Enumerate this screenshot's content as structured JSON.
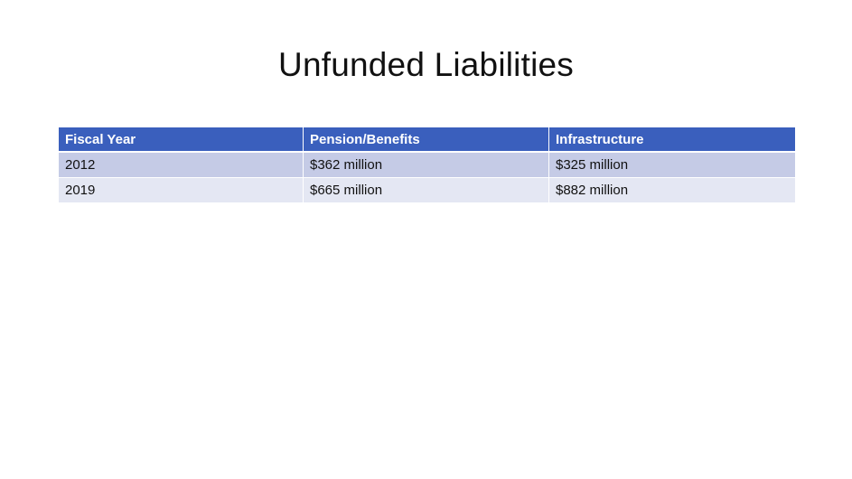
{
  "slide": {
    "title": "Unfunded Liabilities"
  },
  "table": {
    "headers": [
      "Fiscal Year",
      "Pension/Benefits",
      "Infrastructure"
    ],
    "rows": [
      [
        "2012",
        "$362 million",
        "$325 million"
      ],
      [
        "2019",
        "$665 million",
        "$882 million"
      ]
    ]
  },
  "colors": {
    "header_bg": "#3a5fbd",
    "row_odd_bg": "#c5cbe6",
    "row_even_bg": "#e4e7f3"
  }
}
